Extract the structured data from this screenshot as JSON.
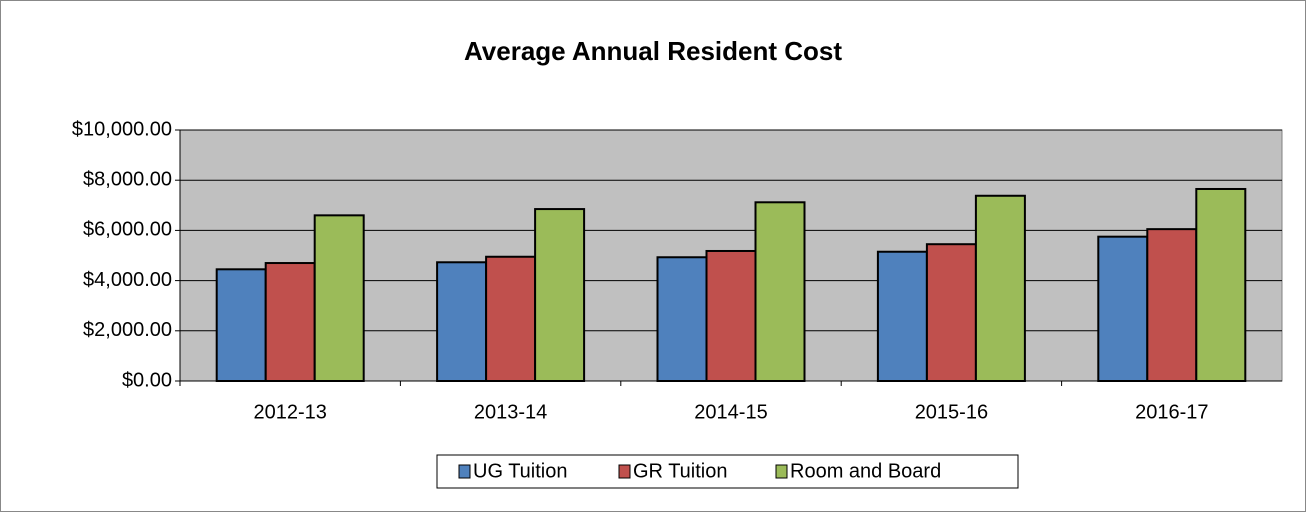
{
  "chart_data": {
    "type": "bar",
    "title": "Average Annual Resident Cost",
    "categories": [
      "2012-13",
      "2013-14",
      "2014-15",
      "2015-16",
      "2016-17"
    ],
    "series": [
      {
        "name": "UG Tuition",
        "color": "#4f81bd",
        "values": [
          4450,
          4730,
          4930,
          5150,
          5750
        ]
      },
      {
        "name": "GR Tuition",
        "color": "#c0504d",
        "values": [
          4700,
          4950,
          5180,
          5450,
          6050
        ]
      },
      {
        "name": "Room and Board",
        "color": "#9bbb59",
        "values": [
          6600,
          6850,
          7120,
          7380,
          7650
        ]
      }
    ],
    "ylim": [
      0,
      10000
    ],
    "yticks": [
      {
        "value": 0,
        "label": "$0.00"
      },
      {
        "value": 2000,
        "label": "$2,000.00"
      },
      {
        "value": 4000,
        "label": "$4,000.00"
      },
      {
        "value": 6000,
        "label": "$6,000.00"
      },
      {
        "value": 8000,
        "label": "$8,000.00"
      },
      {
        "value": 10000,
        "label": "$10,000.00"
      }
    ],
    "grid": true,
    "legend": "bottom"
  }
}
